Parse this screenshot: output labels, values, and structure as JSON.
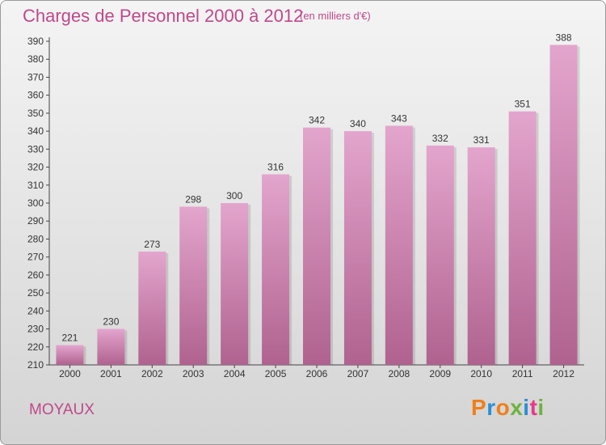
{
  "header": {
    "title": "Charges de Personnel 2000 à 2012",
    "subtitle": "(en milliers d'€)"
  },
  "footer": {
    "commune": "MOYAUX",
    "logo": "Proxiti"
  },
  "colors": {
    "title": "#c0488a",
    "bar_top": "#e3a5cd",
    "bar_bottom": "#b0628f",
    "logo": [
      "#f07f1a",
      "#2a8fd6",
      "#f07f1a",
      "#6db33f",
      "#2a8fd6",
      "#e8398a",
      "#6db33f"
    ]
  },
  "chart_data": {
    "type": "bar",
    "title": "Charges de Personnel 2000 à 2012",
    "subtitle": "(en milliers d'€)",
    "xlabel": "",
    "ylabel": "",
    "categories": [
      "2000",
      "2001",
      "2002",
      "2003",
      "2004",
      "2005",
      "2006",
      "2007",
      "2008",
      "2009",
      "2010",
      "2011",
      "2012"
    ],
    "values": [
      221,
      230,
      273,
      298,
      300,
      316,
      342,
      340,
      343,
      332,
      331,
      351,
      388
    ],
    "ylim": [
      210,
      390
    ],
    "ytick_step": 10,
    "grid": false,
    "data_labels": true
  }
}
